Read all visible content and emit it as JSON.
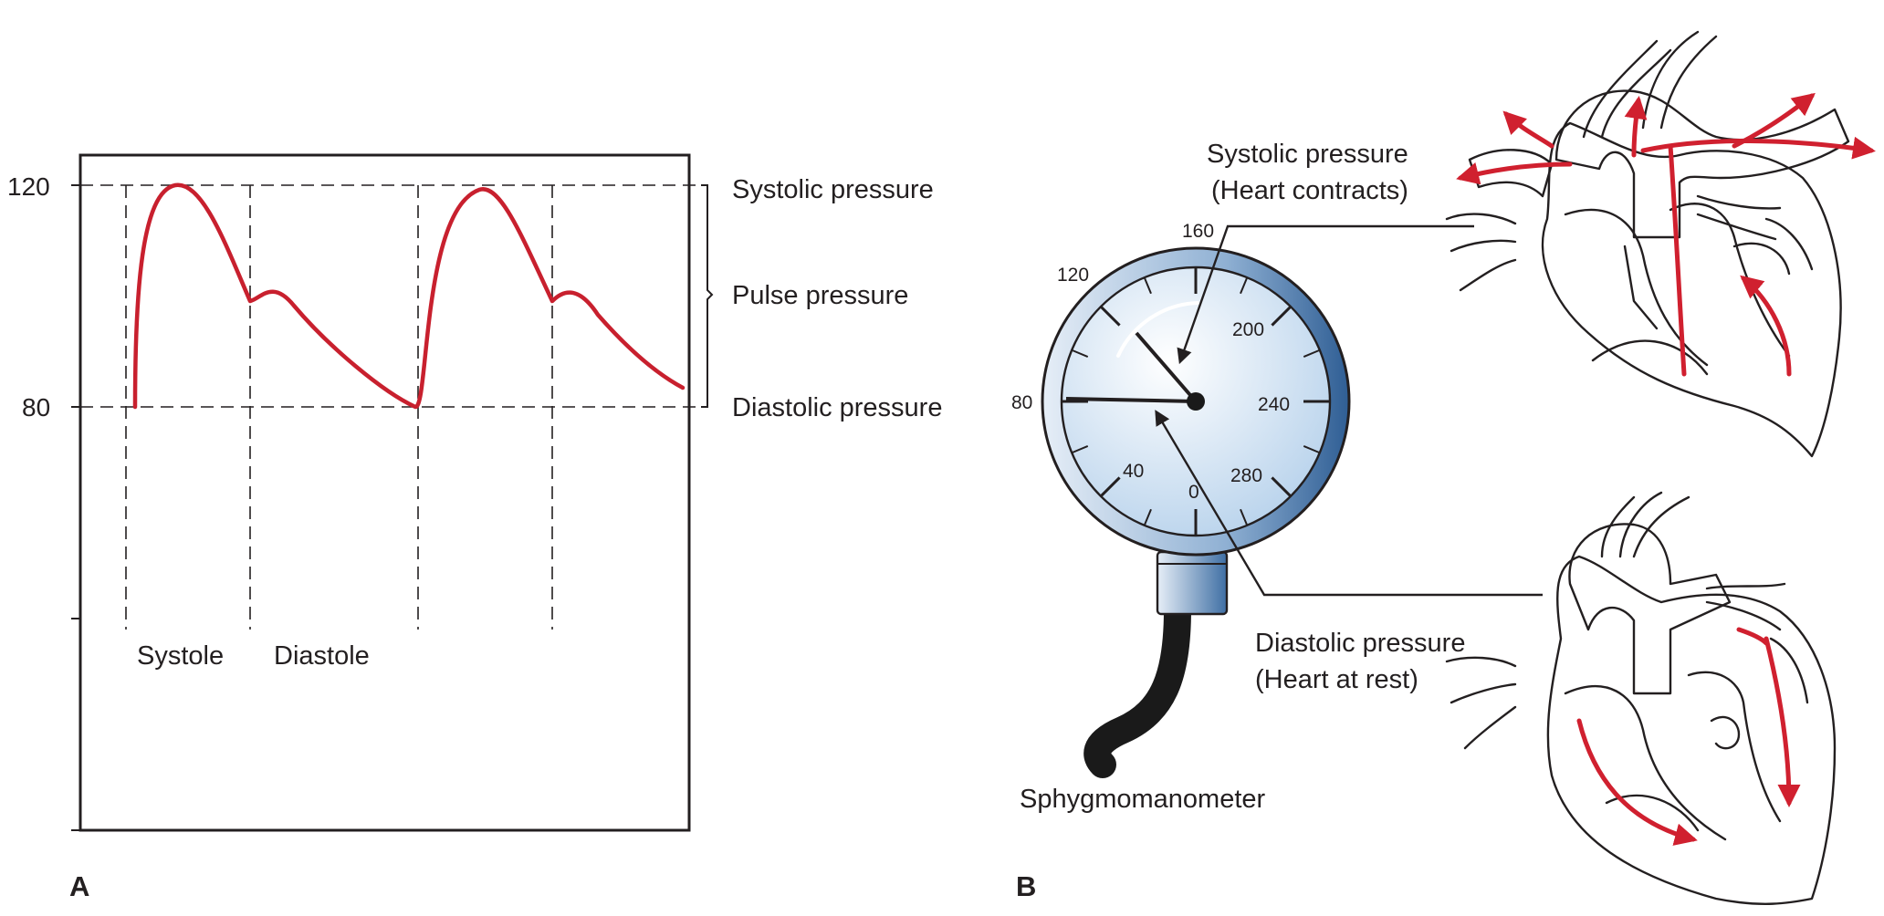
{
  "panel_a": {
    "letter": "A",
    "y_ticks": [
      "120",
      "80"
    ],
    "right_labels": {
      "systolic": "Systolic pressure",
      "pulse": "Pulse pressure",
      "diastolic": "Diastolic pressure"
    },
    "phase_labels": {
      "systole": "Systole",
      "diastole": "Diastole"
    },
    "colors": {
      "waveform": "#c8202e",
      "axes": "#231f20"
    }
  },
  "panel_b": {
    "letter": "B",
    "gauge_ticks": [
      "160",
      "120",
      "200",
      "80",
      "240",
      "40",
      "280",
      "0"
    ],
    "device_label": "Sphygmomanometer",
    "systolic_label": {
      "line1": "Systolic pressure",
      "line2": "(Heart contracts)"
    },
    "diastolic_label": {
      "line1": "Diastolic pressure",
      "line2": "(Heart at rest)"
    },
    "colors": {
      "gauge_rim": "#3f6fa4",
      "gauge_face": "#d9e8f6",
      "heart": "#ee9aa8",
      "flow_arrow": "#d0202f"
    }
  }
}
